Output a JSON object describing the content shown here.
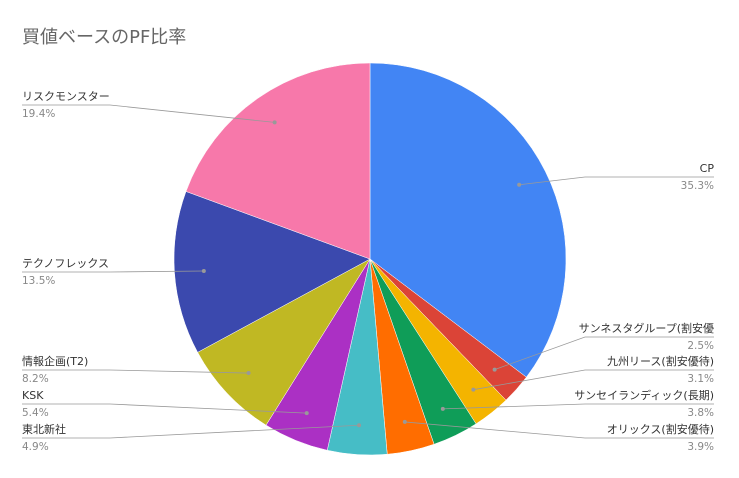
{
  "chart_data": {
    "type": "pie",
    "title": "買値ベースのPF比率",
    "categories": [
      "CP",
      "サンネスタグループ(割安優",
      "九州リース(割安優待)",
      "サンセイランディック(長期)",
      "オリックス(割安優待)",
      "東北新社",
      "KSK",
      "情報企画(T2)",
      "テクノフレックス",
      "リスクモンスター"
    ],
    "values": [
      35.3,
      2.5,
      3.1,
      3.8,
      3.9,
      4.9,
      5.4,
      8.2,
      13.5,
      19.4
    ],
    "value_labels": [
      "35.3%",
      "2.5%",
      "3.1%",
      "3.8%",
      "3.9%",
      "4.9%",
      "5.4%",
      "8.2%",
      "13.5%",
      "19.4%"
    ],
    "colors": [
      "#4285f4",
      "#db4437",
      "#f4b400",
      "#0f9d58",
      "#ff6d00",
      "#46bdc6",
      "#ab30c4",
      "#c0b823",
      "#3b49ae",
      "#f778aa"
    ]
  }
}
